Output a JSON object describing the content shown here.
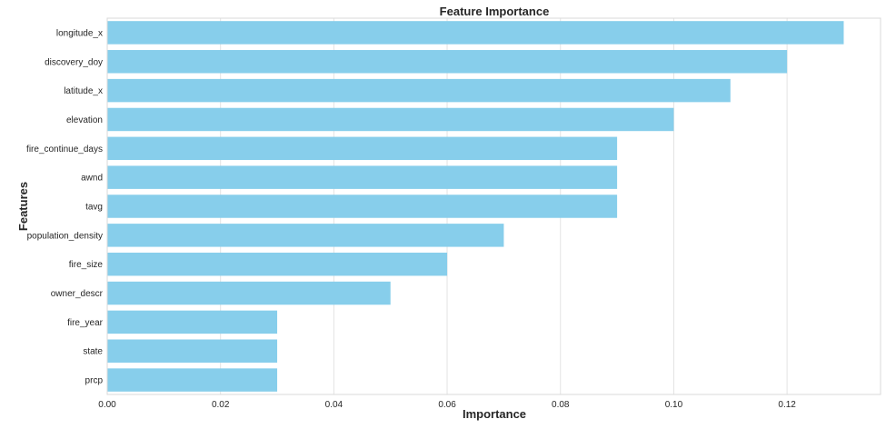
{
  "chart_data": {
    "type": "bar",
    "orientation": "horizontal",
    "title": "Feature Importance",
    "xlabel": "Importance",
    "ylabel": "Features",
    "categories": [
      "longitude_x",
      "discovery_doy",
      "latitude_x",
      "elevation",
      "fire_continue_days",
      "awnd",
      "tavg",
      "population_density",
      "fire_size",
      "owner_descr",
      "fire_year",
      "state",
      "prcp"
    ],
    "values": [
      0.13,
      0.12,
      0.11,
      0.1,
      0.09,
      0.09,
      0.09,
      0.07,
      0.06,
      0.05,
      0.03,
      0.03,
      0.03
    ],
    "xticks": [
      0.0,
      0.02,
      0.04,
      0.06,
      0.08,
      0.1,
      0.12
    ],
    "xtick_labels": [
      "0.00",
      "0.02",
      "0.04",
      "0.06",
      "0.08",
      "0.10",
      "0.12"
    ],
    "xlim": [
      0,
      0.1365
    ],
    "grid": "vertical",
    "legend": "none",
    "bar_color": "#87ceeb"
  }
}
